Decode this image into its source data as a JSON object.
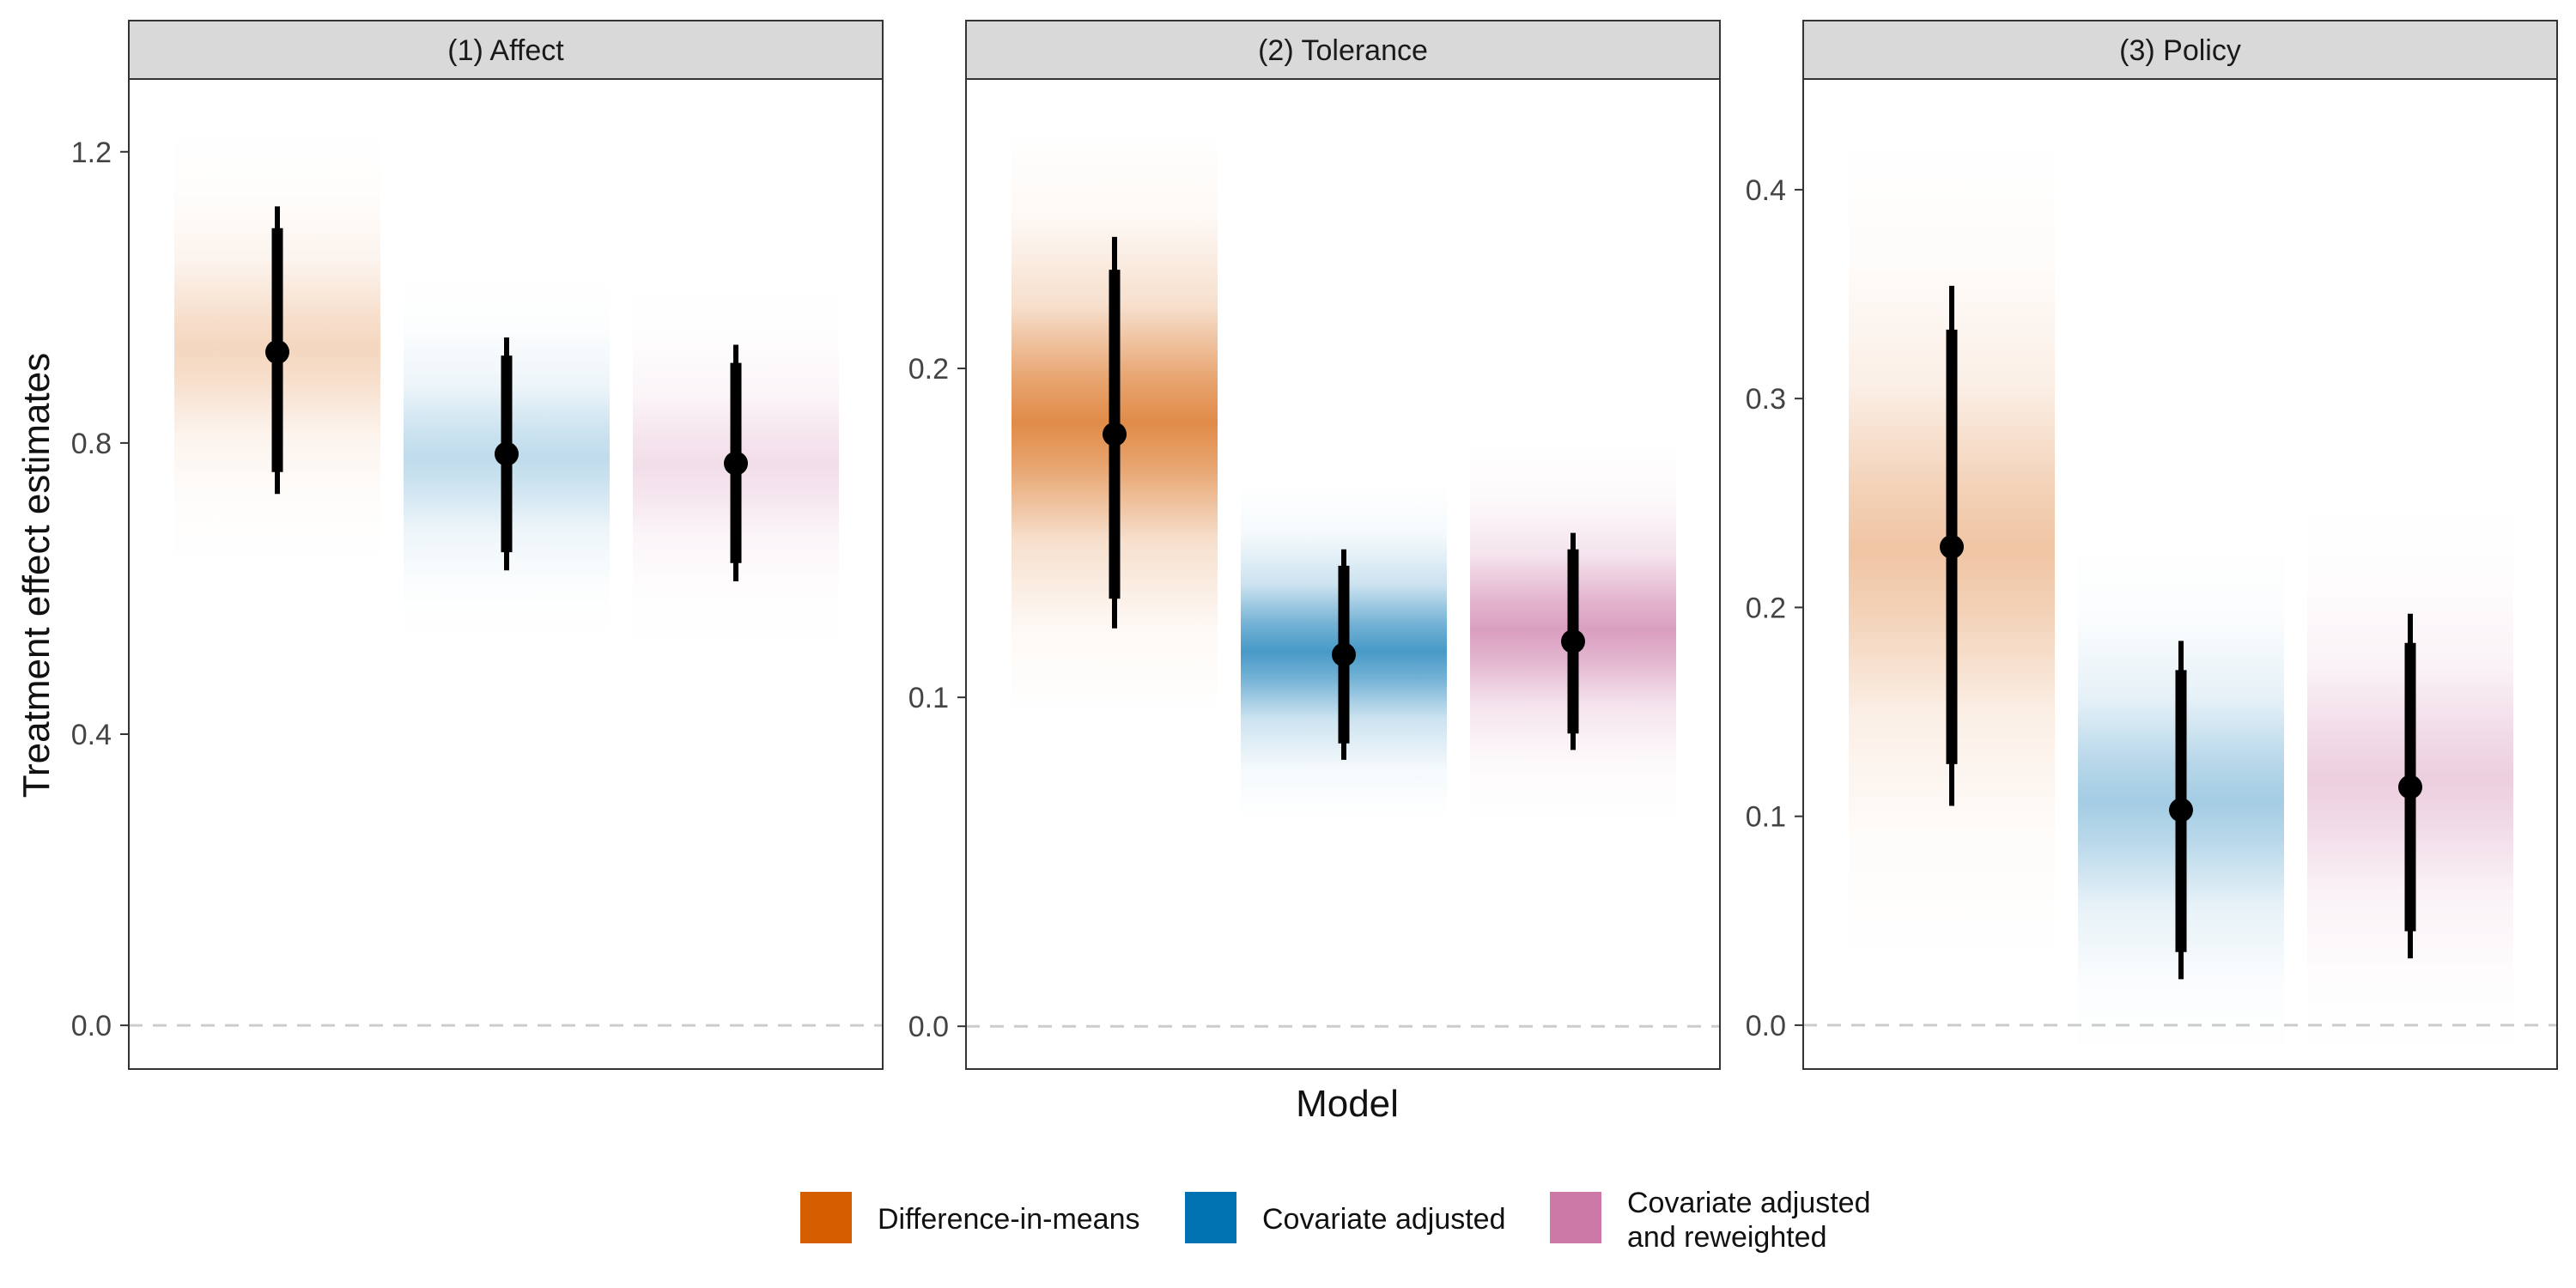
{
  "chart_data": {
    "type": "pointrange-faceted",
    "ylabel": "Treatment effect estimates",
    "xlabel": "Model",
    "reference_line": 0,
    "models": [
      {
        "key": "dim",
        "name": "Difference-in-means",
        "color": "#D55E00"
      },
      {
        "key": "cov",
        "name": "Covariate adjusted",
        "color": "#0072B2"
      },
      {
        "key": "covrw",
        "name": "Covariate adjusted and reweighted",
        "color": "#CC79A7"
      }
    ],
    "panels": [
      {
        "title": "(1) Affect",
        "ylim": [
          -0.06,
          1.3
        ],
        "yticks": [
          0.0,
          0.4,
          0.8,
          1.2
        ],
        "tick_labels": [
          "0.0",
          "0.4",
          "0.8",
          "1.2"
        ],
        "strength": 0.35,
        "estimates": [
          {
            "model": "Difference-in-means",
            "estimate": 0.925,
            "ci_low": 0.73,
            "ci_high": 1.125,
            "inner_low": 0.76,
            "inner_high": 1.095,
            "band_low": 0.63,
            "band_high": 1.23
          },
          {
            "model": "Covariate adjusted",
            "estimate": 0.785,
            "ci_low": 0.625,
            "ci_high": 0.945,
            "inner_low": 0.65,
            "inner_high": 0.92,
            "band_low": 0.53,
            "band_high": 1.03
          },
          {
            "model": "Covariate adjusted and reweighted",
            "estimate": 0.772,
            "ci_low": 0.61,
            "ci_high": 0.935,
            "inner_low": 0.635,
            "inner_high": 0.91,
            "band_low": 0.52,
            "band_high": 1.02
          }
        ]
      },
      {
        "title": "(2) Tolerance",
        "ylim": [
          -0.013,
          0.288
        ],
        "yticks": [
          0.0,
          0.1,
          0.2
        ],
        "tick_labels": [
          "0.0",
          "0.1",
          "0.2"
        ],
        "strength": 1.0,
        "estimates": [
          {
            "model": "Difference-in-means",
            "estimate": 0.18,
            "ci_low": 0.121,
            "ci_high": 0.24,
            "inner_low": 0.13,
            "inner_high": 0.23,
            "band_low": 0.095,
            "band_high": 0.272
          },
          {
            "model": "Covariate adjusted",
            "estimate": 0.113,
            "ci_low": 0.081,
            "ci_high": 0.145,
            "inner_low": 0.086,
            "inner_high": 0.14,
            "band_low": 0.063,
            "band_high": 0.165
          },
          {
            "model": "Covariate adjusted and reweighted",
            "estimate": 0.117,
            "ci_low": 0.084,
            "ci_high": 0.15,
            "inner_low": 0.089,
            "inner_high": 0.145,
            "band_low": 0.063,
            "band_high": 0.178
          }
        ]
      },
      {
        "title": "(3) Policy",
        "ylim": [
          -0.021,
          0.453
        ],
        "yticks": [
          0.0,
          0.1,
          0.2,
          0.3,
          0.4
        ],
        "tick_labels": [
          "0.0",
          "0.1",
          "0.2",
          "0.3",
          "0.4"
        ],
        "strength": 0.5,
        "estimates": [
          {
            "model": "Difference-in-means",
            "estimate": 0.229,
            "ci_low": 0.105,
            "ci_high": 0.354,
            "inner_low": 0.125,
            "inner_high": 0.333,
            "band_low": 0.03,
            "band_high": 0.425
          },
          {
            "model": "Covariate adjusted",
            "estimate": 0.103,
            "ci_low": 0.022,
            "ci_high": 0.184,
            "inner_low": 0.035,
            "inner_high": 0.17,
            "band_low": -0.015,
            "band_high": 0.23
          },
          {
            "model": "Covariate adjusted and reweighted",
            "estimate": 0.114,
            "ci_low": 0.032,
            "ci_high": 0.197,
            "inner_low": 0.045,
            "inner_high": 0.183,
            "band_low": -0.015,
            "band_high": 0.25
          }
        ]
      }
    ],
    "legend": {
      "position": "bottom",
      "items": [
        {
          "lines": [
            "Difference-in-means"
          ],
          "color": "#D55E00"
        },
        {
          "lines": [
            "Covariate adjusted"
          ],
          "color": "#0072B2"
        },
        {
          "lines": [
            "Covariate adjusted",
            "and reweighted"
          ],
          "color": "#CC79A7"
        }
      ]
    }
  }
}
